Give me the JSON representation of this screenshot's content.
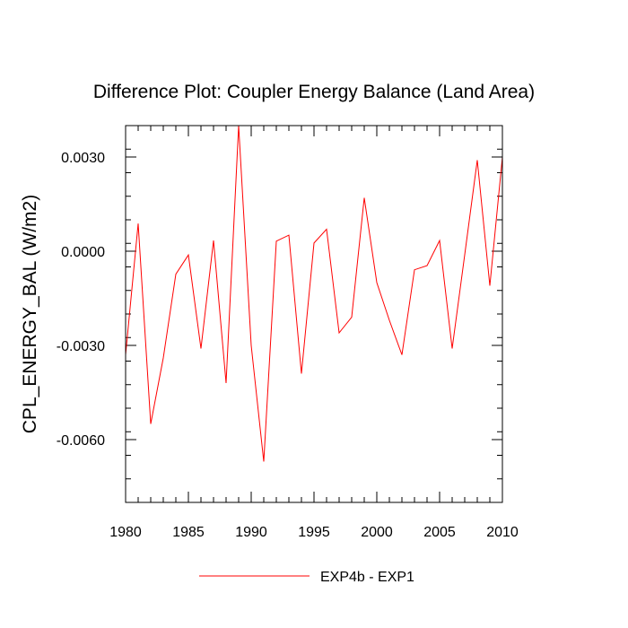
{
  "chart_data": {
    "type": "line",
    "title": "Difference Plot: Coupler Energy Balance (Land Area)",
    "xlabel": "",
    "ylabel": "CPL_ENERGY_BAL  (W/m2)",
    "xlim": [
      1980,
      2010
    ],
    "ylim": [
      -0.008,
      0.004
    ],
    "x_ticks": [
      1980,
      1985,
      1990,
      1995,
      2000,
      2005,
      2010
    ],
    "x_tick_labels": [
      "1980",
      "1985",
      "1990",
      "1995",
      "2000",
      "2005",
      "2010"
    ],
    "y_ticks": [
      0.003,
      0.0,
      -0.003,
      -0.006
    ],
    "y_tick_labels": [
      "0.0030",
      "0.0000",
      "-0.0030",
      "-0.0060"
    ],
    "grid": false,
    "legend_position": "bottom-center",
    "series": [
      {
        "name": "EXP4b - EXP1",
        "color": "#ff0000",
        "x": [
          1980,
          1981,
          1982,
          1983,
          1984,
          1985,
          1986,
          1987,
          1988,
          1989,
          1990,
          1991,
          1992,
          1993,
          1994,
          1995,
          1996,
          1997,
          1998,
          1999,
          2000,
          2001,
          2002,
          2003,
          2004,
          2005,
          2006,
          2007,
          2008,
          2009,
          2010
        ],
        "values": [
          -0.0033,
          0.00088,
          -0.0055,
          -0.0034,
          -0.00073,
          -0.00012,
          -0.0031,
          0.00034,
          -0.0042,
          0.004,
          -0.003,
          -0.0067,
          0.00032,
          0.00051,
          -0.0039,
          0.00026,
          0.0007,
          -0.0026,
          -0.0021,
          0.0017,
          -0.001,
          -0.0022,
          -0.0033,
          -0.00059,
          -0.00046,
          0.00034,
          -0.0031,
          -0.00011,
          0.0029,
          -0.0011,
          0.003
        ]
      }
    ]
  }
}
